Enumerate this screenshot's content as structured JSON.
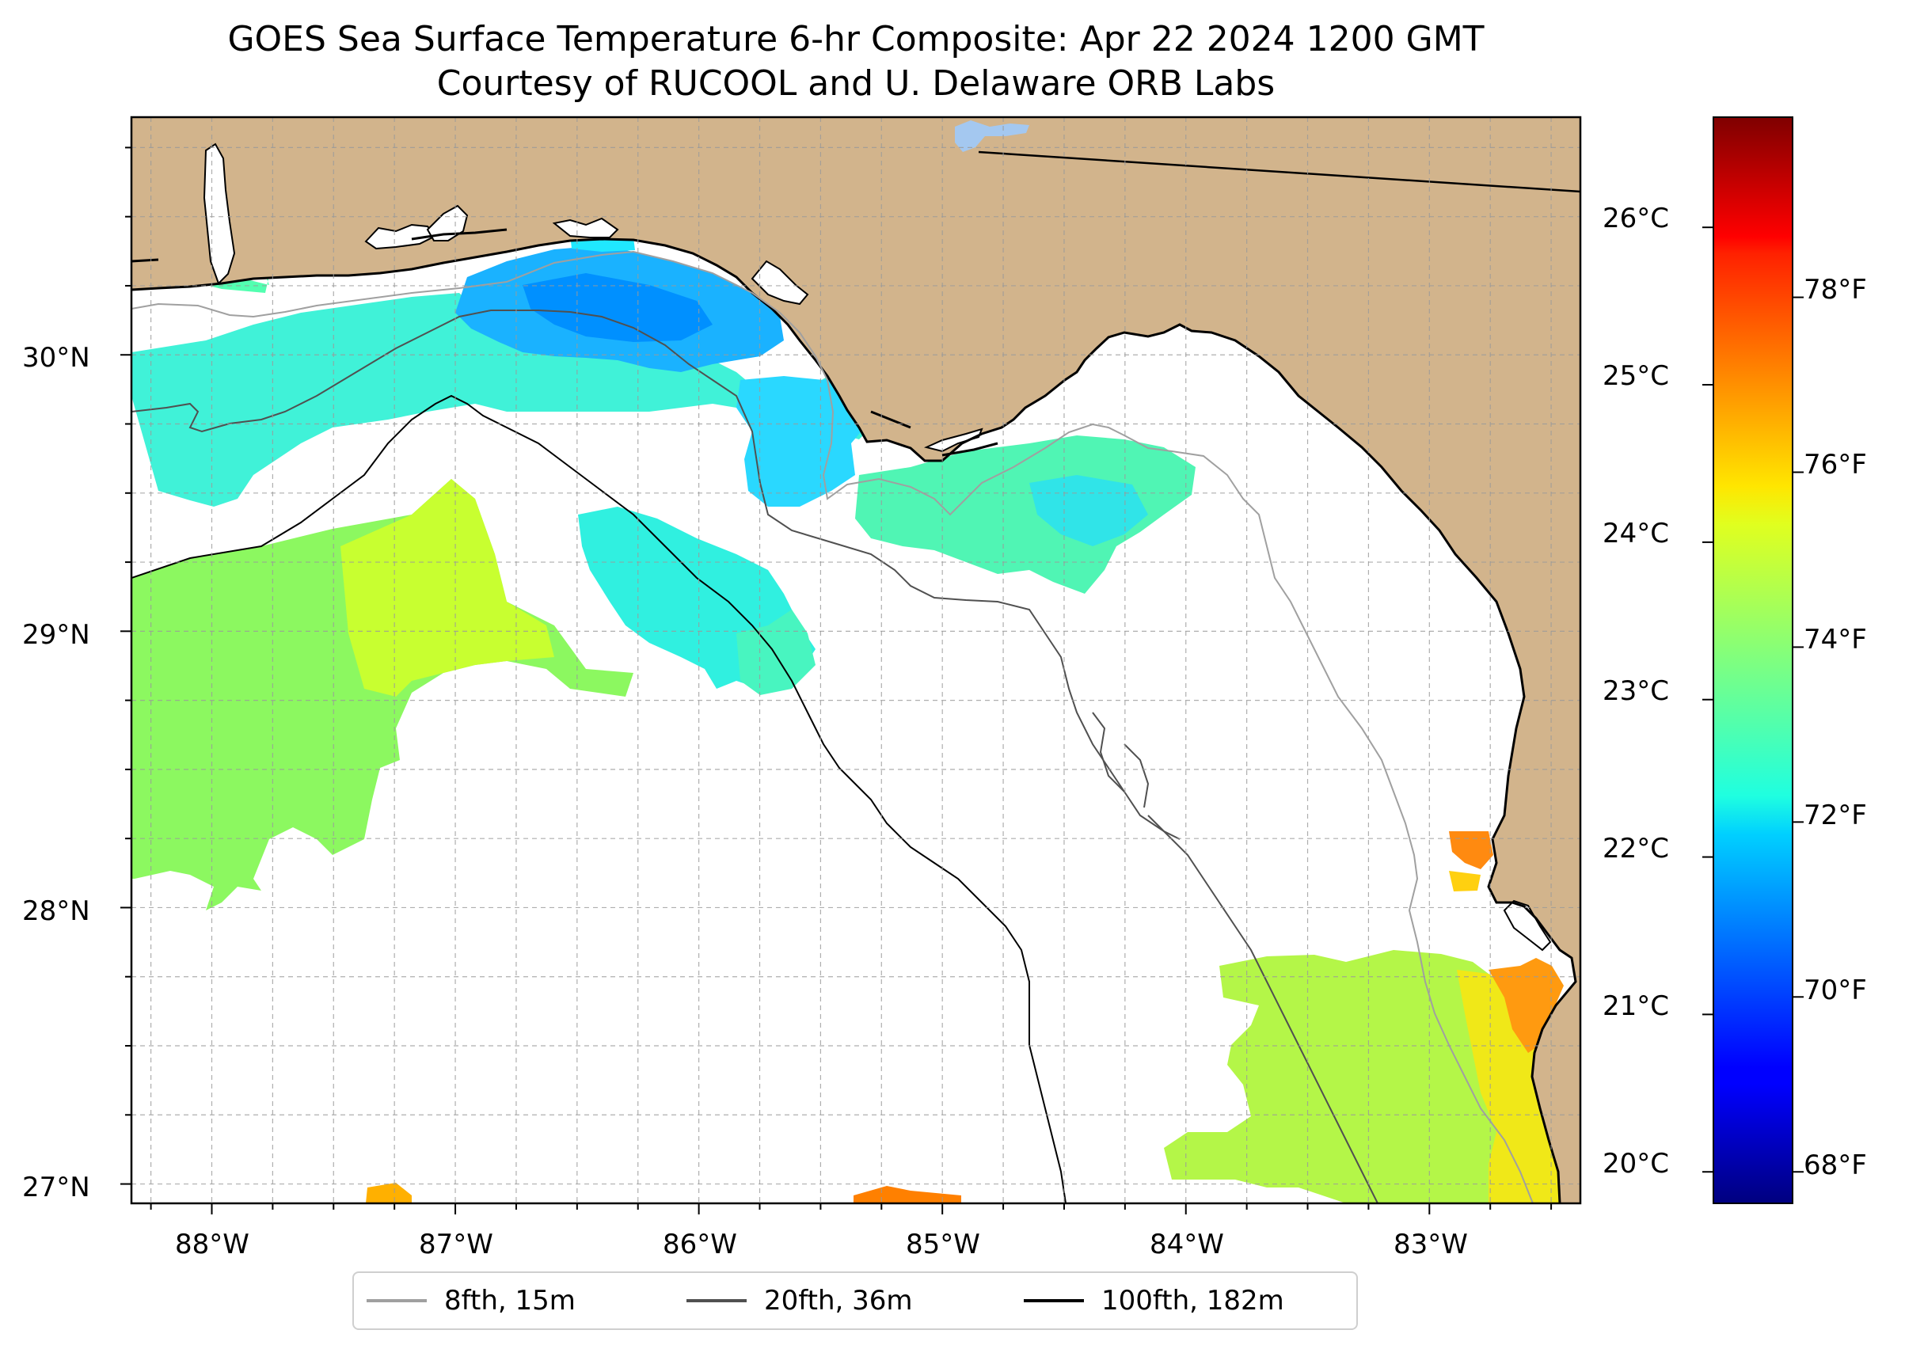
{
  "title": {
    "line1": "GOES Sea Surface Temperature 6-hr Composite: Apr 22 2024 1200 GMT",
    "line2": "Courtesy of RUCOOL and U. Delaware ORB Labs"
  },
  "map": {
    "lon_range": [
      -88.33,
      -82.38
    ],
    "lat_range": [
      26.93,
      30.86
    ],
    "lat_ticks": [
      {
        "value": 30,
        "label": "30°N"
      },
      {
        "value": 29,
        "label": "29°N"
      },
      {
        "value": 28,
        "label": "28°N"
      },
      {
        "value": 27,
        "label": "27°N"
      }
    ],
    "lon_ticks": [
      {
        "value": -88,
        "label": "88°W"
      },
      {
        "value": -87,
        "label": "87°W"
      },
      {
        "value": -86,
        "label": "86°W"
      },
      {
        "value": -85,
        "label": "85°W"
      },
      {
        "value": -84,
        "label": "84°W"
      },
      {
        "value": -83,
        "label": "83°W"
      }
    ],
    "gridlines": "dashed, every 0.25°",
    "land_color": "#d2b48c",
    "coastline_color": "#000000"
  },
  "colorbar": {
    "colormap": "jet",
    "celsius_range": [
      19.8,
      26.7
    ],
    "celsius_ticks": [
      {
        "value": 26,
        "label": "26°C"
      },
      {
        "value": 25,
        "label": "25°C"
      },
      {
        "value": 24,
        "label": "24°C"
      },
      {
        "value": 23,
        "label": "23°C"
      },
      {
        "value": 22,
        "label": "22°C"
      },
      {
        "value": 21,
        "label": "21°C"
      },
      {
        "value": 20,
        "label": "20°C"
      }
    ],
    "fahrenheit_ticks": [
      {
        "value": 78,
        "label": "78°F"
      },
      {
        "value": 76,
        "label": "76°F"
      },
      {
        "value": 74,
        "label": "74°F"
      },
      {
        "value": 72,
        "label": "72°F"
      },
      {
        "value": 70,
        "label": "70°F"
      },
      {
        "value": 68,
        "label": "68°F"
      }
    ]
  },
  "legend": {
    "placement": "below map, centered",
    "items": [
      {
        "label": "8fth, 15m",
        "color": "#a0a0a0"
      },
      {
        "label": "20fth, 36m",
        "color": "#505050"
      },
      {
        "label": "100fth, 182m",
        "color": "#000000"
      }
    ]
  }
}
